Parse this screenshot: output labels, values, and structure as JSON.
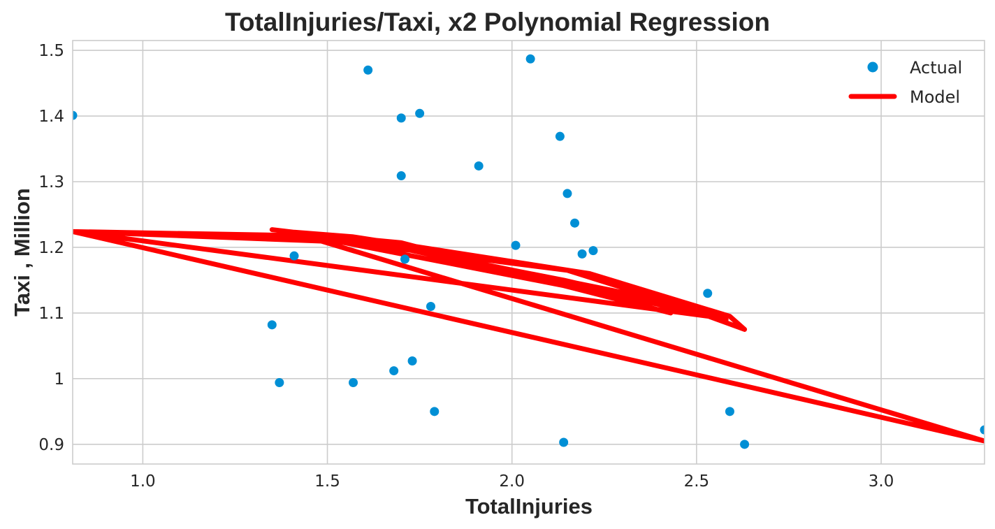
{
  "chart_data": {
    "type": "scatter",
    "title": "TotalInjuries/Taxi, x2 Polynomial Regression",
    "xlabel": "TotalInjuries",
    "ylabel": "Taxi , Million",
    "xlim": [
      0.81,
      3.28
    ],
    "ylim": [
      0.87,
      1.515
    ],
    "xticks": [
      1.0,
      1.5,
      2.0,
      2.5,
      3.0
    ],
    "xtick_labels": [
      "1.0",
      "1.5",
      "2.0",
      "2.5",
      "3.0"
    ],
    "yticks": [
      0.9,
      1.0,
      1.1,
      1.2,
      1.3,
      1.4,
      1.5
    ],
    "ytick_labels": [
      "0.9",
      "1",
      "1.1",
      "1.2",
      "1.3",
      "1.4",
      "1.5"
    ],
    "grid": true,
    "legend": {
      "position": "top-right",
      "entries": [
        "Actual",
        "Model"
      ]
    },
    "colors": {
      "actual": "#008fd5",
      "model": "#ff0000"
    },
    "series": [
      {
        "name": "Actual",
        "kind": "scatter",
        "points": [
          [
            0.81,
            1.401
          ],
          [
            1.35,
            1.082
          ],
          [
            1.37,
            0.994
          ],
          [
            1.41,
            1.187
          ],
          [
            1.57,
            0.994
          ],
          [
            1.61,
            1.47
          ],
          [
            1.68,
            1.012
          ],
          [
            1.7,
            1.397
          ],
          [
            1.7,
            1.309
          ],
          [
            1.71,
            1.182
          ],
          [
            1.73,
            1.027
          ],
          [
            1.75,
            1.404
          ],
          [
            1.78,
            1.11
          ],
          [
            1.79,
            0.95
          ],
          [
            1.91,
            1.324
          ],
          [
            2.01,
            1.203
          ],
          [
            2.05,
            1.487
          ],
          [
            2.13,
            1.369
          ],
          [
            2.14,
            0.903
          ],
          [
            2.15,
            1.282
          ],
          [
            2.17,
            1.237
          ],
          [
            2.19,
            1.19
          ],
          [
            2.22,
            1.195
          ],
          [
            2.53,
            1.13
          ],
          [
            2.59,
            0.95
          ],
          [
            2.63,
            0.9
          ],
          [
            3.28,
            0.922
          ]
        ]
      },
      {
        "name": "Model",
        "kind": "line",
        "x": [
          1.35,
          1.41,
          1.57,
          2.21,
          2.59,
          2.63,
          2.47,
          1.58,
          1.57,
          1.61,
          2.31,
          2.58,
          2.53,
          2.15,
          1.41,
          0.81,
          2.56,
          1.73,
          2.14,
          2.52,
          1.41,
          3.28,
          0.81,
          1.7,
          2.43,
          1.7,
          1.42
        ],
        "y": [
          1.227,
          1.223,
          1.216,
          1.16,
          1.095,
          1.075,
          1.108,
          1.214,
          1.212,
          1.21,
          1.13,
          1.09,
          1.098,
          1.165,
          1.218,
          1.224,
          1.093,
          1.195,
          1.15,
          1.1,
          1.222,
          0.905,
          1.224,
          1.205,
          1.1,
          1.207,
          1.222
        ]
      }
    ]
  }
}
